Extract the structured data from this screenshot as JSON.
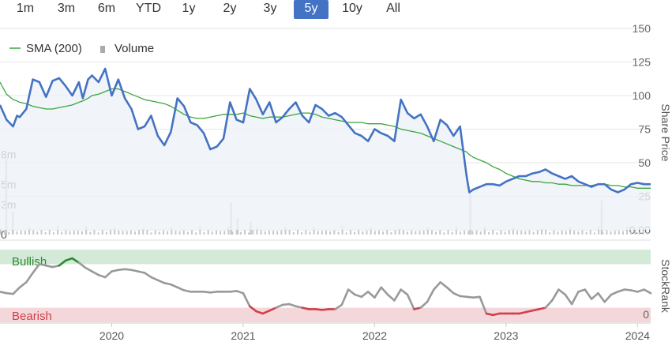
{
  "range_selector": {
    "buttons": [
      "1m",
      "3m",
      "6m",
      "YTD",
      "1y",
      "2y",
      "3y",
      "5y",
      "10y",
      "All"
    ],
    "active": "5y"
  },
  "legend": {
    "sma_label": "SMA (200)",
    "volume_label": "Volume"
  },
  "colors": {
    "price": "#4472c4",
    "sma": "#3aa63a",
    "volume": "#c8c8c8",
    "rank_line": "#999999",
    "bullish_band": "#d3ead8",
    "bearish_band": "#f4d7da",
    "bullish_line": "#2e8b2e",
    "bearish_line": "#d0404a",
    "grid": "#e6e6e6",
    "price_fill": "#eef1f8"
  },
  "chart_data": [
    {
      "type": "line",
      "name": "price-panel",
      "ylabel": "Share Price",
      "right_ticks": [
        "150",
        "125",
        "100",
        "75",
        "50",
        "25",
        "0.00"
      ],
      "ylim": [
        0,
        150
      ],
      "volume_ticks": [
        "8m",
        "5m",
        "3m",
        "0"
      ],
      "volume_ylim": [
        0,
        10
      ],
      "x": [
        2019.15,
        2019.2,
        2019.25,
        2019.28,
        2019.3,
        2019.35,
        2019.4,
        2019.45,
        2019.5,
        2019.55,
        2019.6,
        2019.65,
        2019.7,
        2019.75,
        2019.78,
        2019.82,
        2019.85,
        2019.9,
        2019.95,
        2020.0,
        2020.05,
        2020.1,
        2020.15,
        2020.2,
        2020.25,
        2020.3,
        2020.35,
        2020.4,
        2020.45,
        2020.5,
        2020.55,
        2020.6,
        2020.65,
        2020.7,
        2020.75,
        2020.8,
        2020.85,
        2020.9,
        2020.95,
        2021.0,
        2021.05,
        2021.1,
        2021.15,
        2021.2,
        2021.25,
        2021.3,
        2021.35,
        2021.4,
        2021.45,
        2021.5,
        2021.55,
        2021.6,
        2021.65,
        2021.7,
        2021.75,
        2021.8,
        2021.85,
        2021.9,
        2021.95,
        2022.0,
        2022.05,
        2022.1,
        2022.15,
        2022.2,
        2022.25,
        2022.3,
        2022.35,
        2022.4,
        2022.45,
        2022.5,
        2022.55,
        2022.6,
        2022.65,
        2022.7,
        2022.72,
        2022.75,
        2022.8,
        2022.85,
        2022.9,
        2022.95,
        2023.0,
        2023.05,
        2023.1,
        2023.15,
        2023.2,
        2023.25,
        2023.3,
        2023.35,
        2023.4,
        2023.45,
        2023.5,
        2023.55,
        2023.6,
        2023.65,
        2023.7,
        2023.75,
        2023.8,
        2023.85,
        2023.9,
        2023.95,
        2024.0,
        2024.05,
        2024.1
      ],
      "series": [
        {
          "name": "Share Price",
          "values": [
            93,
            82,
            77,
            85,
            84,
            90,
            112,
            110,
            99,
            111,
            113,
            107,
            100,
            110,
            98,
            112,
            115,
            110,
            120,
            100,
            112,
            98,
            90,
            75,
            77,
            85,
            70,
            63,
            73,
            98,
            92,
            80,
            78,
            72,
            60,
            62,
            68,
            95,
            82,
            80,
            105,
            97,
            86,
            95,
            80,
            84,
            90,
            95,
            85,
            80,
            93,
            90,
            85,
            87,
            84,
            78,
            72,
            70,
            66,
            75,
            72,
            70,
            66,
            97,
            87,
            83,
            86,
            77,
            66,
            82,
            78,
            70,
            77,
            40,
            28,
            30,
            32,
            34,
            34,
            33,
            36,
            38,
            40,
            40,
            42,
            43,
            45,
            42,
            40,
            38,
            40,
            36,
            34,
            32,
            34,
            34,
            30,
            28,
            30,
            34,
            35,
            34,
            34
          ]
        },
        {
          "name": "SMA (200)",
          "values": [
            110,
            101,
            97,
            96,
            95,
            94,
            92,
            91,
            90,
            90,
            91,
            92,
            93,
            95,
            96,
            98,
            100,
            101,
            103,
            105,
            105,
            103,
            101,
            99,
            97,
            96,
            95,
            94,
            92,
            89,
            86,
            84,
            83,
            83,
            84,
            85,
            86,
            86,
            86,
            87,
            85,
            84,
            83,
            84,
            84,
            84,
            85,
            86,
            87,
            87,
            86,
            84,
            83,
            82,
            81,
            80,
            80,
            80,
            79,
            79,
            79,
            78,
            77,
            75,
            74,
            73,
            72,
            70,
            68,
            66,
            64,
            62,
            60,
            58,
            56,
            54,
            52,
            50,
            47,
            45,
            42,
            40,
            38,
            37,
            36,
            36,
            35,
            35,
            34,
            34,
            33,
            33,
            33,
            33,
            34,
            34,
            33,
            33,
            32,
            32,
            31,
            31,
            31
          ]
        }
      ]
    },
    {
      "type": "line",
      "name": "stockrank-panel",
      "ylabel": "StockRank",
      "right_ticks": [
        "0"
      ],
      "ylim": [
        0,
        100
      ],
      "band_labels": [
        "Bullish",
        "Bearish"
      ],
      "bands": {
        "bullish_min": 80,
        "bearish_max": 20
      },
      "x": [
        2019.15,
        2019.2,
        2019.25,
        2019.3,
        2019.35,
        2019.4,
        2019.45,
        2019.5,
        2019.55,
        2019.6,
        2019.65,
        2019.7,
        2019.75,
        2019.8,
        2019.85,
        2019.9,
        2019.95,
        2020.0,
        2020.05,
        2020.1,
        2020.15,
        2020.2,
        2020.25,
        2020.3,
        2020.35,
        2020.4,
        2020.45,
        2020.5,
        2020.55,
        2020.6,
        2020.65,
        2020.7,
        2020.75,
        2020.8,
        2020.85,
        2020.9,
        2020.95,
        2021.0,
        2021.05,
        2021.1,
        2021.15,
        2021.2,
        2021.25,
        2021.3,
        2021.35,
        2021.4,
        2021.45,
        2021.5,
        2021.55,
        2021.6,
        2021.65,
        2021.7,
        2021.75,
        2021.8,
        2021.85,
        2021.9,
        2021.95,
        2022.0,
        2022.05,
        2022.1,
        2022.15,
        2022.2,
        2022.25,
        2022.3,
        2022.35,
        2022.4,
        2022.45,
        2022.5,
        2022.55,
        2022.6,
        2022.65,
        2022.7,
        2022.75,
        2022.8,
        2022.85,
        2022.9,
        2022.95,
        2023.0,
        2023.05,
        2023.1,
        2023.15,
        2023.2,
        2023.25,
        2023.3,
        2023.35,
        2023.4,
        2023.45,
        2023.5,
        2023.55,
        2023.6,
        2023.65,
        2023.7,
        2023.75,
        2023.8,
        2023.85,
        2023.9,
        2023.95,
        2024.0,
        2024.05,
        2024.1
      ],
      "values": [
        42,
        40,
        39,
        48,
        55,
        68,
        80,
        78,
        76,
        78,
        85,
        88,
        82,
        75,
        70,
        65,
        62,
        70,
        72,
        73,
        72,
        70,
        68,
        62,
        58,
        54,
        52,
        48,
        44,
        42,
        42,
        42,
        41,
        42,
        42,
        42,
        43,
        40,
        22,
        15,
        12,
        16,
        20,
        24,
        25,
        22,
        20,
        18,
        18,
        17,
        18,
        18,
        24,
        45,
        38,
        35,
        42,
        34,
        48,
        38,
        30,
        45,
        38,
        18,
        20,
        28,
        45,
        55,
        48,
        40,
        36,
        35,
        34,
        35,
        12,
        10,
        12,
        12,
        12,
        12,
        14,
        16,
        18,
        20,
        30,
        45,
        38,
        25,
        42,
        45,
        32,
        40,
        28,
        38,
        42,
        45,
        44,
        42,
        45,
        40
      ]
    }
  ],
  "x_axis": {
    "ticks": [
      "2020",
      "2021",
      "2022",
      "2023",
      "2024"
    ],
    "tick_values": [
      2020,
      2021,
      2022,
      2023,
      2024
    ],
    "range": [
      2019.15,
      2024.1
    ]
  }
}
